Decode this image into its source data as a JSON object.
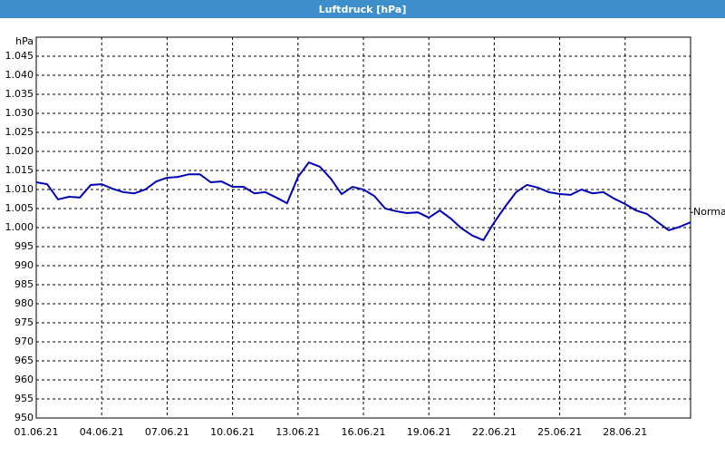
{
  "chart_data": {
    "type": "line",
    "title": "Luftdruck [hPa]",
    "y_label": "hPa",
    "x": [
      0,
      0.5,
      1,
      1.5,
      2,
      2.5,
      3,
      3.5,
      4,
      4.5,
      5,
      5.5,
      6,
      6.5,
      7,
      7.5,
      8,
      8.5,
      9,
      9.5,
      10,
      10.5,
      11,
      11.5,
      12,
      12.5,
      13,
      13.5,
      14,
      14.5,
      15,
      15.5,
      16,
      16.5,
      17,
      17.5,
      18,
      18.5,
      19,
      19.5,
      20,
      20.5,
      21,
      21.5,
      22,
      22.5,
      23,
      23.5,
      24,
      24.5,
      25,
      25.5,
      26,
      26.5,
      27,
      27.5,
      28,
      28.5,
      29,
      29.5,
      30
    ],
    "series": [
      {
        "color": "#0000b4",
        "values": [
          1011.9,
          1011.4,
          1007.4,
          1008.1,
          1007.9,
          1011.2,
          1011.4,
          1010.2,
          1009.3,
          1009,
          1010,
          1012.1,
          1013.1,
          1013.3,
          1014,
          1014,
          1011.9,
          1012.1,
          1010.7,
          1010.7,
          1009,
          1009.3,
          1007.9,
          1006.4,
          1013.3,
          1017.1,
          1016,
          1012.9,
          1008.8,
          1010.7,
          1010,
          1008.3,
          1005,
          1004.3,
          1003.8,
          1004,
          1002.6,
          1004.5,
          1002.4,
          999.8,
          997.9,
          996.7,
          1001.4,
          1005.5,
          1009.3,
          1011.2,
          1010.5,
          1009.3,
          1008.8,
          1008.6,
          1010,
          1009,
          1009.3,
          1007.6,
          1006.2,
          1004.5,
          1003.6,
          1001.4,
          999.3,
          1000.2,
          1001.4
        ]
      }
    ],
    "xlim": [
      0,
      30
    ],
    "xticks": [
      {
        "value": 0,
        "label": "01.06.21"
      },
      {
        "value": 3,
        "label": "04.06.21"
      },
      {
        "value": 6,
        "label": "07.06.21"
      },
      {
        "value": 9,
        "label": "10.06.21"
      },
      {
        "value": 12,
        "label": "13.06.21"
      },
      {
        "value": 15,
        "label": "16.06.21"
      },
      {
        "value": 18,
        "label": "19.06.21"
      },
      {
        "value": 21,
        "label": "22.06.21"
      },
      {
        "value": 24,
        "label": "25.06.21"
      },
      {
        "value": 27,
        "label": "28.06.21"
      }
    ],
    "ylim": [
      950,
      1050
    ],
    "yticks": [
      950,
      955,
      960,
      965,
      970,
      975,
      980,
      985,
      990,
      995,
      {
        "value": 1000,
        "label": "1.000"
      },
      {
        "value": 1005,
        "label": "1.005"
      },
      {
        "value": 1010,
        "label": "1.010"
      },
      {
        "value": 1015,
        "label": "1.015"
      },
      {
        "value": 1020,
        "label": "1.020"
      },
      {
        "value": 1025,
        "label": "1.025"
      },
      {
        "value": 1030,
        "label": "1.030"
      },
      {
        "value": 1035,
        "label": "1.035"
      },
      {
        "value": 1040,
        "label": "1.040"
      },
      {
        "value": 1045,
        "label": "1.045"
      }
    ],
    "grid": true,
    "annotations": [
      {
        "text": "Normal",
        "value": 1004
      }
    ]
  }
}
